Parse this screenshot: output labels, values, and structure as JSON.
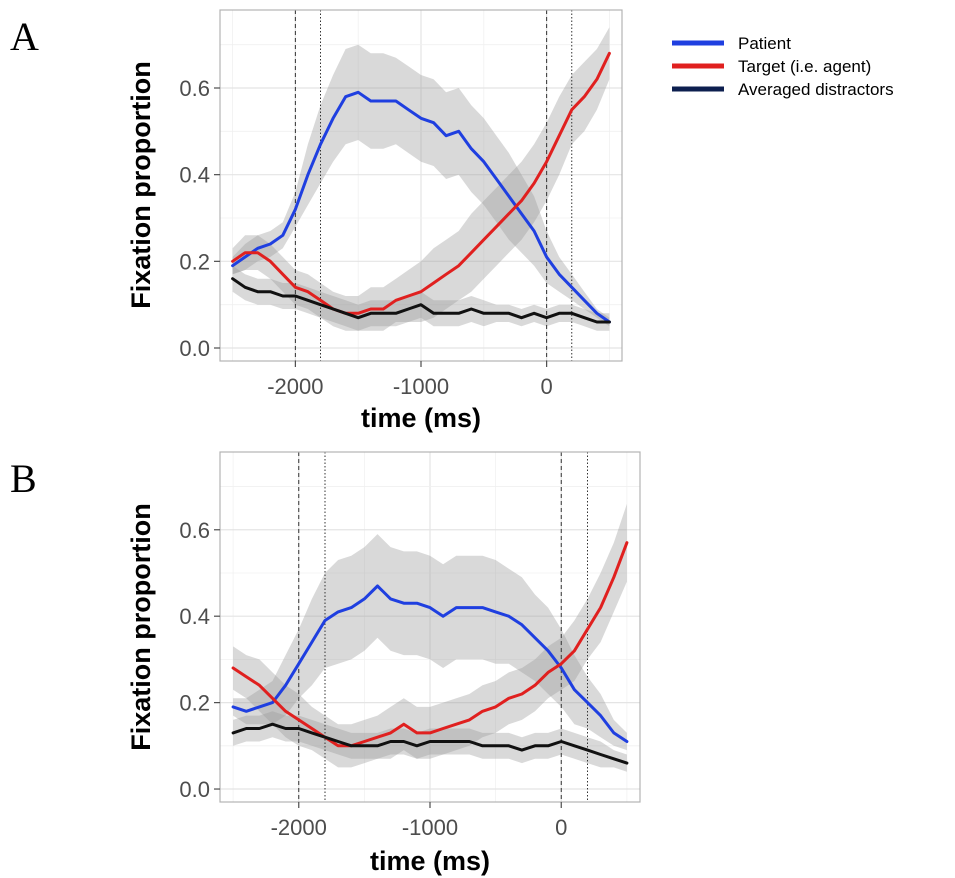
{
  "legend": {
    "items": [
      {
        "label": "Patient",
        "color": "#1f3fe0"
      },
      {
        "label": "Target (i.e. agent)",
        "color": "#e0201f"
      },
      {
        "label": "Averaged distractors",
        "color": "#0d1f4f"
      }
    ]
  },
  "chart_data": [
    {
      "panel": "A",
      "type": "line",
      "xlabel": "time (ms)",
      "ylabel": "Fixation proportion",
      "xlim": [
        -2600,
        600
      ],
      "ylim": [
        -0.03,
        0.78
      ],
      "xticks": [
        -2000,
        -1000,
        0
      ],
      "xtick_labels": [
        "-2000",
        "-1000",
        "0"
      ],
      "yticks": [
        0.0,
        0.2,
        0.4,
        0.6
      ],
      "ytick_labels": [
        "0.0",
        "0.2",
        "0.4",
        "0.6"
      ],
      "grid": true,
      "vlines": [
        -2000,
        -1800,
        0,
        200
      ],
      "series": [
        {
          "name": "Patient",
          "color": "#1f3fe0",
          "x": [
            -2500,
            -2400,
            -2300,
            -2200,
            -2100,
            -2000,
            -1900,
            -1800,
            -1700,
            -1600,
            -1500,
            -1400,
            -1300,
            -1200,
            -1100,
            -1000,
            -900,
            -800,
            -700,
            -600,
            -500,
            -400,
            -300,
            -200,
            -100,
            0,
            100,
            200,
            300,
            400,
            500
          ],
          "y": [
            0.19,
            0.21,
            0.23,
            0.24,
            0.26,
            0.32,
            0.4,
            0.47,
            0.53,
            0.58,
            0.59,
            0.57,
            0.57,
            0.57,
            0.55,
            0.53,
            0.52,
            0.49,
            0.5,
            0.46,
            0.43,
            0.39,
            0.35,
            0.31,
            0.27,
            0.21,
            0.17,
            0.14,
            0.11,
            0.08,
            0.06
          ],
          "band_half_width": [
            0.02,
            0.03,
            0.03,
            0.03,
            0.03,
            0.04,
            0.07,
            0.09,
            0.1,
            0.11,
            0.11,
            0.11,
            0.11,
            0.1,
            0.1,
            0.1,
            0.1,
            0.1,
            0.1,
            0.1,
            0.1,
            0.1,
            0.1,
            0.09,
            0.08,
            0.06,
            0.04,
            0.03,
            0.02,
            0.01,
            0.01
          ]
        },
        {
          "name": "Target (i.e. agent)",
          "color": "#e0201f",
          "x": [
            -2500,
            -2400,
            -2300,
            -2200,
            -2100,
            -2000,
            -1900,
            -1800,
            -1700,
            -1600,
            -1500,
            -1400,
            -1300,
            -1200,
            -1100,
            -1000,
            -900,
            -800,
            -700,
            -600,
            -500,
            -400,
            -300,
            -200,
            -100,
            0,
            100,
            200,
            300,
            400,
            500
          ],
          "y": [
            0.2,
            0.22,
            0.22,
            0.2,
            0.17,
            0.14,
            0.13,
            0.11,
            0.09,
            0.08,
            0.08,
            0.09,
            0.09,
            0.11,
            0.12,
            0.13,
            0.15,
            0.17,
            0.19,
            0.22,
            0.25,
            0.28,
            0.31,
            0.34,
            0.38,
            0.43,
            0.49,
            0.55,
            0.58,
            0.62,
            0.68
          ],
          "band_half_width": [
            0.03,
            0.04,
            0.04,
            0.04,
            0.04,
            0.04,
            0.04,
            0.04,
            0.04,
            0.04,
            0.04,
            0.05,
            0.05,
            0.05,
            0.06,
            0.07,
            0.08,
            0.08,
            0.08,
            0.09,
            0.09,
            0.09,
            0.09,
            0.09,
            0.09,
            0.09,
            0.09,
            0.08,
            0.08,
            0.07,
            0.06
          ]
        },
        {
          "name": "Averaged distractors",
          "color": "#111111",
          "x": [
            -2500,
            -2400,
            -2300,
            -2200,
            -2100,
            -2000,
            -1900,
            -1800,
            -1700,
            -1600,
            -1500,
            -1400,
            -1300,
            -1200,
            -1100,
            -1000,
            -900,
            -800,
            -700,
            -600,
            -500,
            -400,
            -300,
            -200,
            -100,
            0,
            100,
            200,
            300,
            400,
            500
          ],
          "y": [
            0.16,
            0.14,
            0.13,
            0.13,
            0.12,
            0.12,
            0.11,
            0.1,
            0.09,
            0.08,
            0.07,
            0.08,
            0.08,
            0.08,
            0.09,
            0.1,
            0.08,
            0.08,
            0.08,
            0.09,
            0.08,
            0.08,
            0.08,
            0.07,
            0.08,
            0.07,
            0.08,
            0.08,
            0.07,
            0.06,
            0.06
          ],
          "band_half_width": [
            0.03,
            0.03,
            0.03,
            0.03,
            0.03,
            0.03,
            0.03,
            0.03,
            0.03,
            0.03,
            0.03,
            0.03,
            0.03,
            0.03,
            0.03,
            0.03,
            0.03,
            0.03,
            0.03,
            0.03,
            0.03,
            0.02,
            0.02,
            0.02,
            0.02,
            0.02,
            0.02,
            0.02,
            0.02,
            0.02,
            0.02
          ]
        }
      ]
    },
    {
      "panel": "B",
      "type": "line",
      "xlabel": "time (ms)",
      "ylabel": "Fixation proportion",
      "xlim": [
        -2600,
        600
      ],
      "ylim": [
        -0.03,
        0.78
      ],
      "xticks": [
        -2000,
        -1000,
        0
      ],
      "xtick_labels": [
        "-2000",
        "-1000",
        "0"
      ],
      "yticks": [
        0.0,
        0.2,
        0.4,
        0.6
      ],
      "ytick_labels": [
        "0.0",
        "0.2",
        "0.4",
        "0.6"
      ],
      "grid": true,
      "vlines": [
        -2000,
        -1800,
        0,
        200
      ],
      "series": [
        {
          "name": "Patient",
          "color": "#1f3fe0",
          "x": [
            -2500,
            -2400,
            -2300,
            -2200,
            -2100,
            -2000,
            -1900,
            -1800,
            -1700,
            -1600,
            -1500,
            -1400,
            -1300,
            -1200,
            -1100,
            -1000,
            -900,
            -800,
            -700,
            -600,
            -500,
            -400,
            -300,
            -200,
            -100,
            0,
            100,
            200,
            300,
            400,
            500
          ],
          "y": [
            0.19,
            0.18,
            0.19,
            0.2,
            0.24,
            0.29,
            0.34,
            0.39,
            0.41,
            0.42,
            0.44,
            0.47,
            0.44,
            0.43,
            0.43,
            0.42,
            0.4,
            0.42,
            0.42,
            0.42,
            0.41,
            0.4,
            0.38,
            0.35,
            0.32,
            0.28,
            0.23,
            0.2,
            0.17,
            0.13,
            0.11
          ],
          "band_half_width": [
            0.02,
            0.03,
            0.04,
            0.05,
            0.07,
            0.08,
            0.1,
            0.11,
            0.12,
            0.12,
            0.12,
            0.12,
            0.12,
            0.12,
            0.12,
            0.12,
            0.12,
            0.12,
            0.12,
            0.12,
            0.12,
            0.11,
            0.11,
            0.1,
            0.1,
            0.09,
            0.08,
            0.06,
            0.05,
            0.03,
            0.02
          ]
        },
        {
          "name": "Target (i.e. agent)",
          "color": "#e0201f",
          "x": [
            -2500,
            -2400,
            -2300,
            -2200,
            -2100,
            -2000,
            -1900,
            -1800,
            -1700,
            -1600,
            -1500,
            -1400,
            -1300,
            -1200,
            -1100,
            -1000,
            -900,
            -800,
            -700,
            -600,
            -500,
            -400,
            -300,
            -200,
            -100,
            0,
            100,
            200,
            300,
            400,
            500
          ],
          "y": [
            0.28,
            0.26,
            0.24,
            0.21,
            0.18,
            0.16,
            0.14,
            0.12,
            0.1,
            0.1,
            0.11,
            0.12,
            0.13,
            0.15,
            0.13,
            0.13,
            0.14,
            0.15,
            0.16,
            0.18,
            0.19,
            0.21,
            0.22,
            0.24,
            0.27,
            0.29,
            0.32,
            0.37,
            0.42,
            0.49,
            0.57
          ],
          "band_half_width": [
            0.05,
            0.05,
            0.06,
            0.06,
            0.06,
            0.06,
            0.05,
            0.05,
            0.05,
            0.05,
            0.05,
            0.05,
            0.06,
            0.06,
            0.06,
            0.06,
            0.06,
            0.06,
            0.06,
            0.06,
            0.06,
            0.06,
            0.06,
            0.06,
            0.06,
            0.06,
            0.07,
            0.07,
            0.08,
            0.08,
            0.09
          ]
        },
        {
          "name": "Averaged distractors",
          "color": "#111111",
          "x": [
            -2500,
            -2400,
            -2300,
            -2200,
            -2100,
            -2000,
            -1900,
            -1800,
            -1700,
            -1600,
            -1500,
            -1400,
            -1300,
            -1200,
            -1100,
            -1000,
            -900,
            -800,
            -700,
            -600,
            -500,
            -400,
            -300,
            -200,
            -100,
            0,
            100,
            200,
            300,
            400,
            500
          ],
          "y": [
            0.13,
            0.14,
            0.14,
            0.15,
            0.14,
            0.14,
            0.13,
            0.12,
            0.11,
            0.1,
            0.1,
            0.1,
            0.11,
            0.11,
            0.1,
            0.11,
            0.11,
            0.11,
            0.11,
            0.1,
            0.1,
            0.1,
            0.09,
            0.1,
            0.1,
            0.11,
            0.1,
            0.09,
            0.08,
            0.07,
            0.06
          ],
          "band_half_width": [
            0.03,
            0.03,
            0.03,
            0.03,
            0.03,
            0.03,
            0.03,
            0.03,
            0.03,
            0.03,
            0.03,
            0.03,
            0.03,
            0.03,
            0.03,
            0.03,
            0.03,
            0.03,
            0.03,
            0.03,
            0.03,
            0.03,
            0.03,
            0.03,
            0.03,
            0.03,
            0.03,
            0.03,
            0.03,
            0.02,
            0.02
          ]
        }
      ]
    }
  ]
}
